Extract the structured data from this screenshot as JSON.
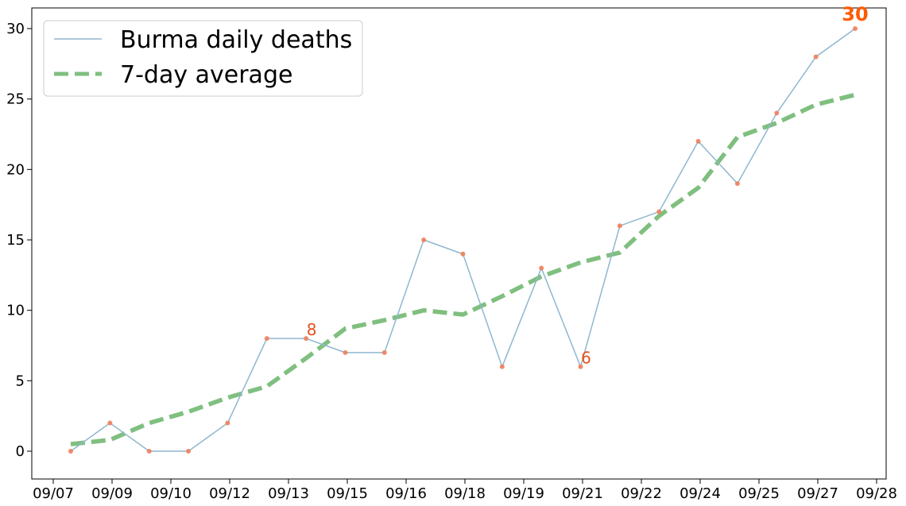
{
  "chart_data": {
    "type": "line",
    "x": [
      "09/08",
      "09/09",
      "09/10",
      "09/11",
      "09/12",
      "09/13",
      "09/14",
      "09/15",
      "09/16",
      "09/17",
      "09/18",
      "09/19",
      "09/20",
      "09/21",
      "09/22",
      "09/23",
      "09/24",
      "09/25",
      "09/26",
      "09/27",
      "09/28"
    ],
    "x_tick_labels": [
      "09/07",
      "09/09",
      "09/10",
      "09/12",
      "09/13",
      "09/15",
      "09/16",
      "09/18",
      "09/19",
      "09/21",
      "09/22",
      "09/24",
      "09/25",
      "09/27",
      "09/28"
    ],
    "y_tick_labels": [
      "0",
      "5",
      "10",
      "15",
      "20",
      "25",
      "30"
    ],
    "ylim": [
      -2,
      31.5
    ],
    "series": [
      {
        "name": "Burma daily deaths",
        "values": [
          0,
          2,
          0,
          0,
          2,
          8,
          8,
          7,
          7,
          15,
          14,
          6,
          13,
          6,
          16,
          17,
          22,
          19,
          24,
          28,
          30
        ],
        "color": "#8fb7cf",
        "marker_color": "#f07f5c"
      },
      {
        "name": "7-day average",
        "values": [
          0.5,
          0.8,
          2.0,
          2.8,
          3.8,
          4.6,
          6.6,
          8.7,
          9.3,
          10.0,
          9.7,
          11.0,
          12.4,
          13.4,
          14.1,
          16.7,
          18.7,
          22.3,
          23.3,
          24.6,
          25.3
        ],
        "color": "#7fbf7f"
      }
    ],
    "annotations": [
      {
        "text": "8",
        "x": "09/14",
        "y": 8,
        "color": "#e8501a",
        "bold": false
      },
      {
        "text": "6",
        "x": "09/21",
        "y": 6,
        "color": "#e8501a",
        "bold": false
      },
      {
        "text": "30",
        "x": "09/28",
        "y": 30,
        "color": "#ff5a00",
        "bold": true
      }
    ],
    "legend_position": "top-left",
    "grid": false
  }
}
